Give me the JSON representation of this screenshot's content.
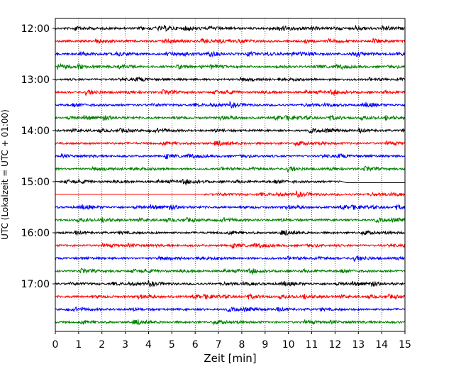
{
  "chart_data": {
    "type": "line",
    "title": "",
    "xlabel": "Zeit  [min]",
    "ylabel": "UTC (Lokalzeit = UTC + 01:00)",
    "xlim": [
      0,
      15
    ],
    "x_ticks": [
      "0",
      "1",
      "2",
      "3",
      "4",
      "5",
      "6",
      "7",
      "8",
      "9",
      "10",
      "11",
      "12",
      "13",
      "14",
      "15"
    ],
    "y_ticks": [
      "12:00",
      "13:00",
      "14:00",
      "15:00",
      "16:00",
      "17:00"
    ],
    "grid": "vertical dotted lines at each minute",
    "legend": "none",
    "trace_colors": [
      "#000000",
      "#ff0000",
      "#0000ff",
      "#008000"
    ],
    "series": [
      {
        "start": "12:00",
        "color": "#000000"
      },
      {
        "start": "12:15",
        "color": "#ff0000"
      },
      {
        "start": "12:30",
        "color": "#0000ff"
      },
      {
        "start": "12:45",
        "color": "#008000"
      },
      {
        "start": "13:00",
        "color": "#000000"
      },
      {
        "start": "13:15",
        "color": "#ff0000"
      },
      {
        "start": "13:30",
        "color": "#0000ff"
      },
      {
        "start": "13:45",
        "color": "#008000"
      },
      {
        "start": "14:00",
        "color": "#000000"
      },
      {
        "start": "14:15",
        "color": "#ff0000"
      },
      {
        "start": "14:30",
        "color": "#0000ff"
      },
      {
        "start": "14:45",
        "color": "#008000"
      },
      {
        "start": "15:00",
        "color": "#000000",
        "data_end_min": 12.2
      },
      {
        "start": "15:15",
        "color": "#ff0000",
        "data_start_min": 6.4
      },
      {
        "start": "15:30",
        "color": "#0000ff"
      },
      {
        "start": "15:45",
        "color": "#008000"
      },
      {
        "start": "16:00",
        "color": "#000000"
      },
      {
        "start": "16:15",
        "color": "#ff0000"
      },
      {
        "start": "16:30",
        "color": "#0000ff"
      },
      {
        "start": "16:45",
        "color": "#008000"
      },
      {
        "start": "17:00",
        "color": "#000000"
      },
      {
        "start": "17:15",
        "color": "#ff0000"
      },
      {
        "start": "17:30",
        "color": "#0000ff"
      },
      {
        "start": "17:45",
        "color": "#008000"
      }
    ]
  }
}
